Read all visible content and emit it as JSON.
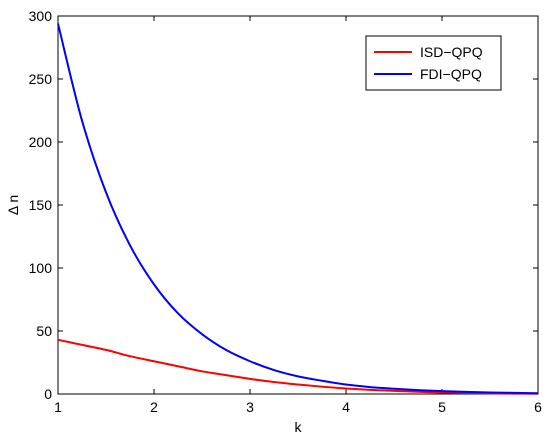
{
  "chart_data": {
    "type": "line",
    "title": "",
    "xlabel": "k",
    "ylabel": "Δ n",
    "xlim": [
      1,
      6
    ],
    "ylim": [
      0,
      300
    ],
    "xticks": [
      "1",
      "2",
      "3",
      "4",
      "5",
      "6"
    ],
    "yticks": [
      "0",
      "50",
      "100",
      "150",
      "200",
      "250",
      "300"
    ],
    "grid": false,
    "legend": {
      "position": "top-right"
    },
    "x": [
      1,
      1.25,
      1.5,
      1.75,
      2,
      2.25,
      2.5,
      2.75,
      3,
      3.25,
      3.5,
      3.75,
      4,
      4.25,
      4.5,
      4.75,
      5,
      5.25,
      5.5,
      5.75,
      6
    ],
    "series": [
      {
        "name": "ISD−QPQ",
        "color": "#ff0000",
        "values": [
          43,
          39,
          35,
          30,
          26,
          22,
          18,
          15,
          12,
          9.5,
          7.5,
          5.8,
          4.4,
          3.3,
          2.5,
          1.8,
          1.2,
          0.8,
          0.5,
          0.3,
          0.2
        ]
      },
      {
        "name": "FDI−QPQ",
        "color": "#0000ff",
        "values": [
          294,
          217,
          160,
          118,
          87,
          64,
          47.5,
          35,
          26,
          19,
          14,
          10.5,
          7.5,
          5.5,
          4.2,
          3.1,
          2.3,
          1.7,
          1.2,
          0.9,
          0.6
        ]
      }
    ]
  }
}
